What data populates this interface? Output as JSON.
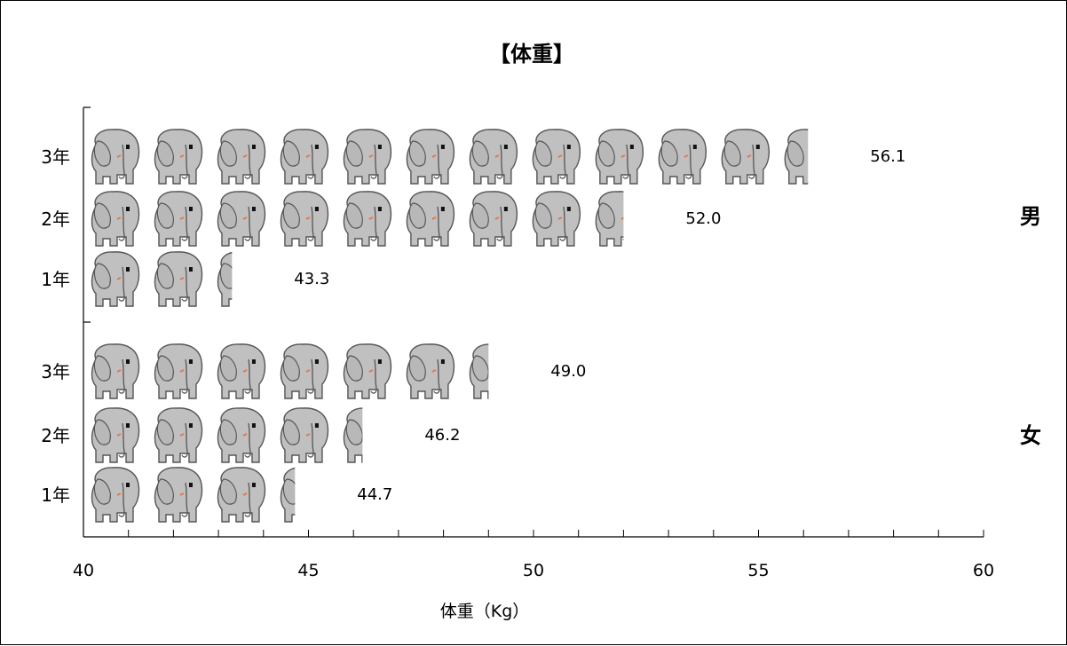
{
  "chart_data": {
    "type": "bar",
    "orientation": "horizontal",
    "style": "pictograph",
    "title": "【体重】",
    "xlabel": "体重（Kg）",
    "xlim": [
      40,
      60
    ],
    "xticks": [
      "40",
      "45",
      "50",
      "55",
      "60"
    ],
    "groups": [
      {
        "name": "男",
        "categories": [
          "3年",
          "2年",
          "1年"
        ],
        "values": [
          56.1,
          52.0,
          43.3
        ],
        "value_labels": [
          "56.1",
          "52.0",
          "43.3"
        ]
      },
      {
        "name": "女",
        "categories": [
          "3年",
          "2年",
          "1年"
        ],
        "values": [
          49.0,
          46.2,
          44.7
        ],
        "value_labels": [
          "49.0",
          "46.2",
          "44.7"
        ]
      }
    ],
    "icon": "elephant-icon",
    "icon_unit": 1.4,
    "colors": {
      "icon_fill": "#c0c0c0",
      "icon_stroke": "#555555",
      "axis": "#000000"
    }
  }
}
